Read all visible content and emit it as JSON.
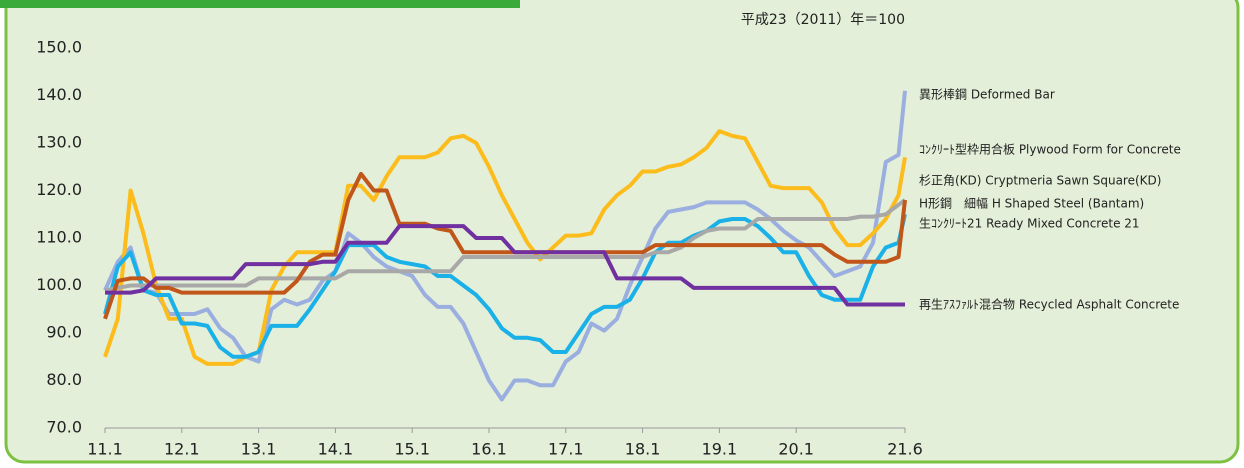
{
  "chart_data": {
    "type": "line",
    "subtitle": "平成23（2011）年＝100",
    "x": [
      11,
      11.167,
      11.333,
      11.5,
      11.667,
      11.833,
      12,
      12.167,
      12.333,
      12.5,
      12.667,
      12.833,
      13,
      13.167,
      13.333,
      13.5,
      13.667,
      13.833,
      14,
      14.167,
      14.333,
      14.5,
      14.667,
      14.833,
      15,
      15.167,
      15.333,
      15.5,
      15.667,
      15.833,
      16,
      16.167,
      16.333,
      16.5,
      16.667,
      16.833,
      17,
      17.167,
      17.333,
      17.5,
      17.667,
      17.833,
      18,
      18.167,
      18.333,
      18.5,
      18.667,
      18.833,
      19,
      19.167,
      19.333,
      19.5,
      19.667,
      19.833,
      20,
      20.167,
      20.333,
      20.5,
      20.667,
      20.833,
      21,
      21.167,
      21.333,
      21.417
    ],
    "xlim": [
      11,
      21.417
    ],
    "xticks": [
      {
        "value": 11,
        "label": "11.1"
      },
      {
        "value": 12,
        "label": "12.1"
      },
      {
        "value": 13,
        "label": "13.1"
      },
      {
        "value": 14,
        "label": "14.1"
      },
      {
        "value": 15,
        "label": "15.1"
      },
      {
        "value": 16,
        "label": "16.1"
      },
      {
        "value": 17,
        "label": "17.1"
      },
      {
        "value": 18,
        "label": "18.1"
      },
      {
        "value": 19,
        "label": "19.1"
      },
      {
        "value": 20,
        "label": "20.1"
      },
      {
        "value": 21.417,
        "label": "21.6"
      }
    ],
    "ylim": [
      70,
      150
    ],
    "yticks": [
      {
        "value": 70,
        "label": "70.0"
      },
      {
        "value": 80,
        "label": "80.0"
      },
      {
        "value": 90,
        "label": "90.0"
      },
      {
        "value": 100,
        "label": "100.0"
      },
      {
        "value": 110,
        "label": "110.0"
      },
      {
        "value": 120,
        "label": "120.0"
      },
      {
        "value": 130,
        "label": "130.0"
      },
      {
        "value": 140,
        "label": "140.0"
      },
      {
        "value": 150,
        "label": "150.0"
      }
    ],
    "series": [
      {
        "name": "異形棒鋼 Deformed Bar",
        "color": "#9aafe0",
        "values": [
          99,
          105,
          108,
          99,
          98.5,
          94,
          94,
          94,
          95,
          91,
          89,
          85,
          84,
          95,
          97,
          96,
          97,
          101,
          103,
          111,
          109,
          106,
          104,
          103,
          102,
          98,
          95.5,
          95.5,
          92,
          86,
          80,
          76,
          80,
          80,
          79,
          79,
          84,
          86,
          92,
          90.5,
          93,
          100,
          106,
          112,
          115.5,
          116,
          116.5,
          117.5,
          117.5,
          117.5,
          117.5,
          116,
          114,
          111.5,
          109.5,
          108,
          105,
          102,
          103,
          104,
          109,
          126,
          127.5,
          141
        ]
      },
      {
        "name": "ｺﾝｸﾘｰﾄ型枠用合板 Plywood Form for Concrete",
        "color": "#fbbc1c",
        "values": [
          85,
          93,
          120,
          111,
          100,
          93,
          93,
          85,
          83.5,
          83.5,
          83.5,
          85,
          86,
          99,
          104,
          107,
          107,
          107,
          107,
          121,
          121,
          118,
          123,
          127,
          127,
          127,
          128,
          131,
          131.5,
          130,
          125,
          119,
          114,
          109,
          105.5,
          108,
          110.5,
          110.5,
          111,
          116,
          119,
          121,
          124,
          124,
          125,
          125.5,
          127,
          129,
          132.5,
          131.5,
          131,
          126,
          121,
          120.5,
          120.5,
          120.5,
          117.5,
          112,
          108.5,
          108.5,
          111,
          114,
          119,
          127
        ]
      },
      {
        "name": "杉正角(KD) Cryptmeria Sawn Square(KD)",
        "color": "#1ab0e8",
        "values": [
          94,
          104,
          107,
          99,
          98,
          98,
          92,
          92,
          91.5,
          87,
          85,
          85,
          86,
          91.5,
          91.5,
          91.5,
          95,
          99,
          103,
          108.5,
          108.5,
          108.5,
          106,
          105,
          104.5,
          104,
          102,
          102,
          100,
          98,
          95,
          91,
          89,
          89,
          88.5,
          86,
          86,
          90,
          94,
          95.5,
          95.5,
          97,
          101.5,
          107,
          109,
          109,
          110.5,
          111.5,
          113.5,
          114,
          114,
          112.5,
          110,
          107,
          107,
          102,
          98,
          97,
          97,
          97,
          104,
          108,
          109,
          115
        ]
      },
      {
        "name": "H形鋼　細幅 H Shaped Steel (Bantam)",
        "color": "#a8a8a8",
        "values": [
          99,
          99.5,
          100,
          100,
          100,
          100,
          100,
          100,
          100,
          100,
          100,
          100,
          101.5,
          101.5,
          101.5,
          101.5,
          101.5,
          101.5,
          101.5,
          103,
          103,
          103,
          103,
          103,
          103,
          103,
          103,
          103,
          106,
          106,
          106,
          106,
          106,
          106,
          106,
          106,
          106,
          106,
          106,
          106,
          106,
          106,
          106,
          107,
          107,
          108,
          110,
          111.5,
          112,
          112,
          112,
          114,
          114,
          114,
          114,
          114,
          114,
          114,
          114,
          114.5,
          114.5,
          115,
          117,
          118
        ]
      },
      {
        "name": "生ｺﾝｸﾘｰﾄ21 Ready Mixed Concrete 21",
        "color": "#c0561a",
        "values": [
          93,
          101,
          101.5,
          101.5,
          99.5,
          99.5,
          98.5,
          98.5,
          98.5,
          98.5,
          98.5,
          98.5,
          98.5,
          98.5,
          98.5,
          101,
          105,
          106.5,
          106.5,
          118,
          123.5,
          120,
          120,
          113,
          113,
          113,
          112,
          111.5,
          107,
          107,
          107,
          107,
          107,
          107,
          107,
          107,
          107,
          107,
          107,
          107,
          107,
          107,
          107,
          108.5,
          108.5,
          108.5,
          108.5,
          108.5,
          108.5,
          108.5,
          108.5,
          108.5,
          108.5,
          108.5,
          108.5,
          108.5,
          108.5,
          106.5,
          105,
          105,
          105,
          105,
          106,
          118
        ]
      },
      {
        "name": "再生ｱｽﾌｧﾙﾄ混合物 Recycled Asphalt Concrete",
        "color": "#7030a0",
        "values": [
          98.5,
          98.5,
          98.5,
          99,
          101.5,
          101.5,
          101.5,
          101.5,
          101.5,
          101.5,
          101.5,
          104.5,
          104.5,
          104.5,
          104.5,
          104.5,
          104.5,
          105,
          105,
          109,
          109,
          109,
          109,
          112.5,
          112.5,
          112.5,
          112.5,
          112.5,
          112.5,
          110,
          110,
          110,
          107,
          107,
          107,
          107,
          107,
          107,
          107,
          107,
          101.5,
          101.5,
          101.5,
          101.5,
          101.5,
          101.5,
          99.5,
          99.5,
          99.5,
          99.5,
          99.5,
          99.5,
          99.5,
          99.5,
          99.5,
          99.5,
          99.5,
          99.5,
          96,
          96,
          96,
          96,
          96,
          96
        ]
      }
    ]
  }
}
